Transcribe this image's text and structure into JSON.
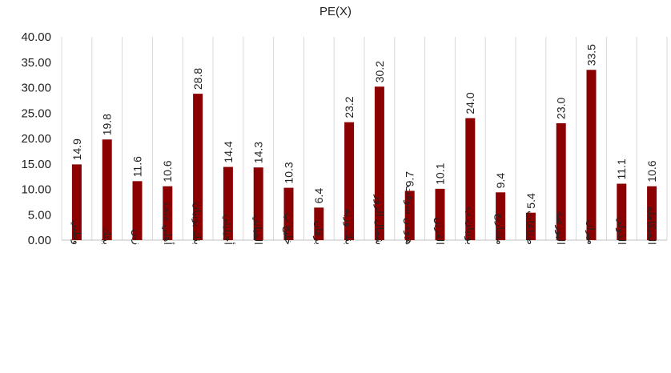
{
  "chart_data": {
    "type": "bar",
    "title": "PE(X)",
    "xlabel": "",
    "ylabel": "",
    "ylim": [
      0,
      40
    ],
    "yticks": [
      "0.00",
      "5.00",
      "10.00",
      "15.00",
      "20.00",
      "25.00",
      "30.00",
      "35.00",
      "40.00"
    ],
    "grid": "vertical",
    "bar_color": "#8b0000",
    "categories": [
      "وطني",
      "بيتك",
      "زين",
      "أهلي متحد",
      "بنك بوبيان",
      "أجيليتي",
      "المباني",
      "خليج ب",
      "برقان",
      "بنك وربة",
      "شمال الزور",
      "هيومن سوفت",
      "القرين",
      "بوبيان ب",
      "مشاريع",
      "صناعات",
      "البورصة",
      "ميزان",
      "الدولي",
      "المتكاملة"
    ],
    "values": [
      14.9,
      19.8,
      11.6,
      10.6,
      28.8,
      14.4,
      14.3,
      10.3,
      6.4,
      23.2,
      30.2,
      9.7,
      10.1,
      24.0,
      9.4,
      5.4,
      23.0,
      33.5,
      11.1,
      10.6
    ],
    "data_labels": [
      "14.9",
      "19.8",
      "11.6",
      "10.6",
      "28.8",
      "14.4",
      "14.3",
      "10.3",
      "6.4",
      "23.2",
      "30.2",
      "9.7",
      "10.1",
      "24.0",
      "9.4",
      "5.4",
      "23.0",
      "33.5",
      "11.1",
      "10.6"
    ]
  }
}
